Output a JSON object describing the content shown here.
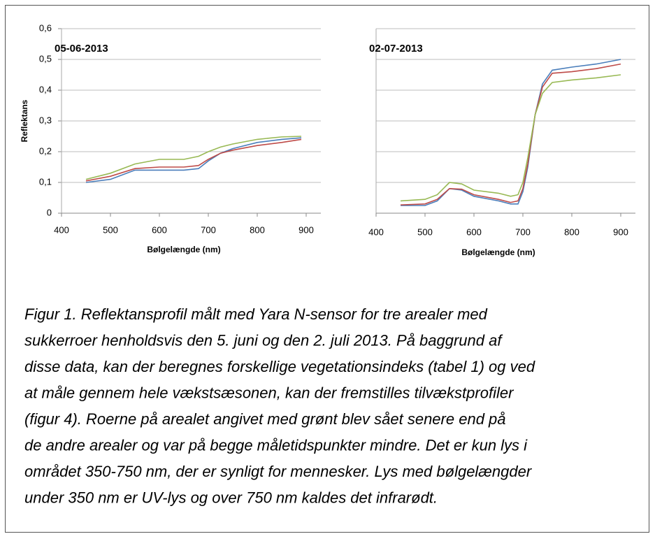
{
  "chart_data": [
    {
      "type": "line",
      "title": "05-06-2013",
      "xlabel": "Bølgelængde (nm)",
      "ylabel": "Reflektans",
      "x": [
        450,
        500,
        550,
        600,
        650,
        680,
        700,
        725,
        750,
        800,
        850,
        890
      ],
      "series": [
        {
          "color": "#4a7ebb",
          "values": [
            0.1,
            0.11,
            0.14,
            0.14,
            0.14,
            0.145,
            0.17,
            0.195,
            0.21,
            0.23,
            0.24,
            0.245
          ]
        },
        {
          "color": "#be4b48",
          "values": [
            0.105,
            0.12,
            0.145,
            0.15,
            0.15,
            0.155,
            0.175,
            0.195,
            0.205,
            0.22,
            0.23,
            0.24
          ]
        },
        {
          "color": "#98b954",
          "values": [
            0.11,
            0.13,
            0.16,
            0.175,
            0.175,
            0.185,
            0.2,
            0.215,
            0.225,
            0.24,
            0.248,
            0.25
          ]
        }
      ],
      "xlim": [
        400,
        930
      ],
      "xticks": [
        400,
        500,
        600,
        700,
        800,
        900
      ],
      "ylim": [
        0,
        0.6
      ],
      "yticks": [
        0,
        {
          "value": 0.1,
          "label": "0,1"
        },
        {
          "value": 0.2,
          "label": "0,2"
        },
        {
          "value": 0.3,
          "label": "0,3"
        },
        {
          "value": 0.4,
          "label": "0,4"
        },
        {
          "value": 0.5,
          "label": "0,5"
        },
        {
          "value": 0.6,
          "label": "0,6"
        }
      ],
      "grid": true,
      "show_ytick_labels": true
    },
    {
      "type": "line",
      "title": "02-07-2013",
      "xlabel": "Bølgelængde (nm)",
      "x": [
        450,
        500,
        525,
        550,
        575,
        600,
        650,
        675,
        690,
        700,
        710,
        725,
        740,
        760,
        800,
        850,
        900
      ],
      "series": [
        {
          "color": "#4a7ebb",
          "values": [
            0.025,
            0.025,
            0.04,
            0.08,
            0.075,
            0.055,
            0.04,
            0.03,
            0.03,
            0.07,
            0.15,
            0.32,
            0.42,
            0.465,
            0.475,
            0.485,
            0.5
          ]
        },
        {
          "color": "#be4b48",
          "values": [
            0.027,
            0.03,
            0.045,
            0.08,
            0.078,
            0.06,
            0.045,
            0.035,
            0.04,
            0.08,
            0.16,
            0.32,
            0.41,
            0.455,
            0.46,
            0.47,
            0.485
          ]
        },
        {
          "color": "#98b954",
          "values": [
            0.04,
            0.045,
            0.06,
            0.1,
            0.095,
            0.075,
            0.065,
            0.055,
            0.06,
            0.1,
            0.18,
            0.32,
            0.39,
            0.425,
            0.433,
            0.44,
            0.45
          ]
        }
      ],
      "xlim": [
        400,
        930
      ],
      "xticks": [
        400,
        500,
        600,
        700,
        800,
        900
      ],
      "ylim": [
        0,
        0.6
      ],
      "yticks": [
        0,
        0.1,
        0.2,
        0.3,
        0.4,
        0.5,
        0.6
      ],
      "grid": true,
      "show_ytick_labels": false
    }
  ],
  "caption": [
    "Figur 1. Reflektansprofil målt med Yara N-sensor for tre arealer med",
    "sukkerroer henholdsvis den 5. juni og den 2. juli 2013. På baggrund af",
    "disse data, kan der beregnes forskellige vegetationsindeks (tabel 1) og ved",
    "at måle gennem hele vækstsæsonen, kan der fremstilles tilvækstprofiler",
    "(figur 4). Roerne på arealet angivet med grønt blev sået senere end på",
    "de andre arealer og var på begge måletidspunkter mindre. Det er kun lys i",
    "området 350-750 nm, der er synligt for mennesker. Lys med bølgelængder",
    "under 350 nm er UV-lys og over 750 nm kaldes det infrarødt."
  ]
}
